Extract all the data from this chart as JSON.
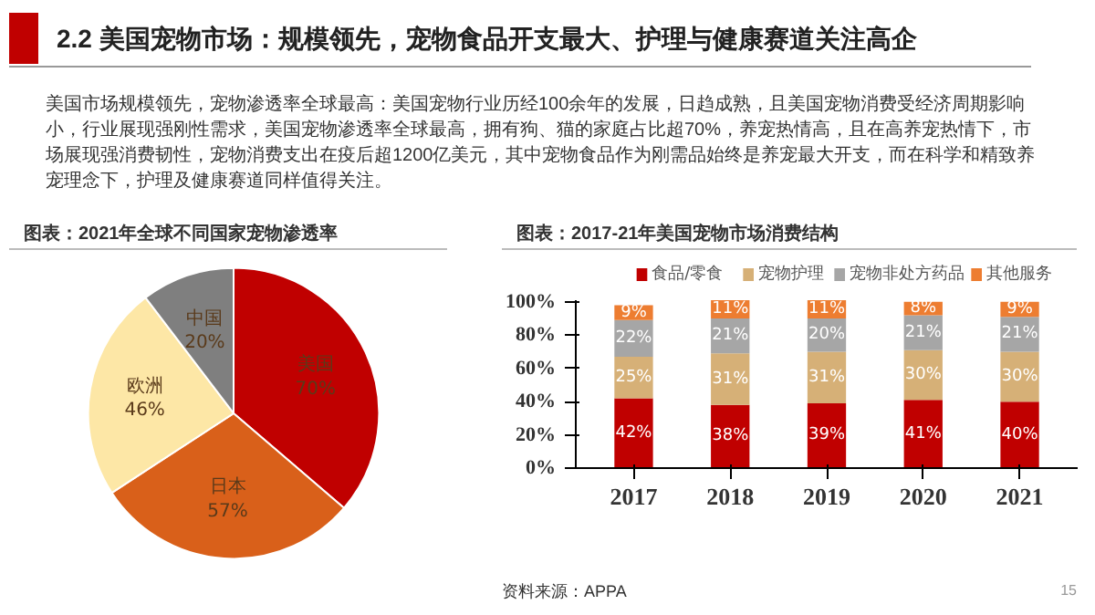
{
  "chart_data": [
    {
      "type": "other",
      "title": "2.2 美国宠物市场：规模领先，宠物食品开支最大、护理与健康赛道关注高企",
      "annotations": [
        "美国市场规模领先，宠物渗透率全球最高：美国宠物行业历经100余年的发展，日趋成熟，且美国宠物消费受经济周期影响小，行业展现强刚性需求，美国宠物渗透率全球最高，拥有狗、猫的家庭占比超70%，养宠热情高，且在高养宠热情下，市场展现强消费韧性，宠物消费支出在疫后超1200亿美元，其中宠物食品作为刚需品始终是养宠最大开支，而在科学和精致养宠理念下，护理及健康赛道同样值得关注。",
        "15"
      ]
    },
    {
      "type": "pie",
      "title": "图表：2021年全球不同国家宠物渗透率",
      "categories": [
        "美国",
        "日本",
        "欧洲",
        "中国"
      ],
      "values": [
        70,
        57,
        46,
        20
      ],
      "value_labels": [
        "70%",
        "57%",
        "46%",
        "20%"
      ],
      "colors": [
        "#c00000",
        "#d9601a",
        "#fde7a6",
        "#7f7f7f"
      ]
    },
    {
      "type": "bar",
      "stacked": true,
      "title": "图表：2017-21年美国宠物市场消费结构",
      "categories": [
        "2017",
        "2018",
        "2019",
        "2020",
        "2021"
      ],
      "ylim": [
        0,
        101
      ],
      "yticks": [
        {
          "value": 0,
          "label": "0%"
        },
        {
          "value": 20,
          "label": "20%"
        },
        {
          "value": 40,
          "label": "40%"
        },
        {
          "value": 60,
          "label": "60%"
        },
        {
          "value": 80,
          "label": "80%"
        },
        {
          "value": 100,
          "label": "100%"
        }
      ],
      "legend": "top",
      "annotations": [
        "资料来源：APPA"
      ],
      "series": [
        {
          "name": "食品/零食",
          "color": "#c00000",
          "values": [
            42,
            38,
            39,
            41,
            40
          ],
          "value_labels": [
            "42%",
            "38%",
            "39%",
            "41%",
            "40%"
          ]
        },
        {
          "name": "宠物护理",
          "color": "#d6b077",
          "values": [
            25,
            31,
            31,
            30,
            30
          ],
          "value_labels": [
            "25%",
            "31%",
            "31%",
            "30%",
            "30%"
          ]
        },
        {
          "name": "宠物非处方药品",
          "color": "#a6a6a6",
          "values": [
            22,
            21,
            20,
            21,
            21
          ],
          "value_labels": [
            "22%",
            "21%",
            "20%",
            "21%",
            "21%"
          ]
        },
        {
          "name": "其他服务",
          "color": "#ed7d31",
          "values": [
            9,
            11,
            11,
            8,
            9
          ],
          "value_labels": [
            "9%",
            "11%",
            "11%",
            "8%",
            "9%"
          ]
        }
      ]
    }
  ]
}
